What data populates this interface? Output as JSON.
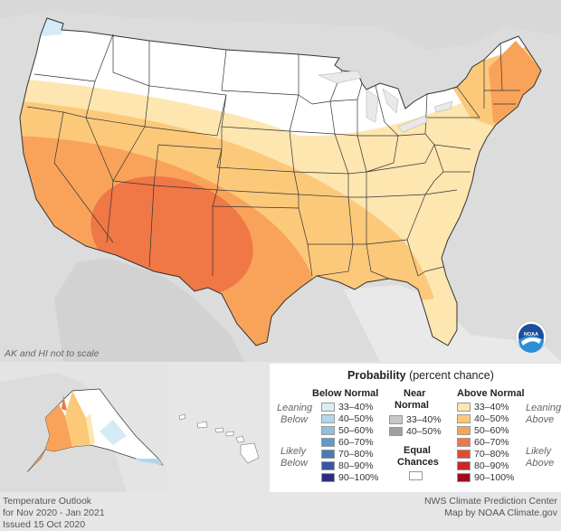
{
  "map": {
    "scale_note": "AK and HI not to scale",
    "logo_text": "NOAA",
    "colors": {
      "above_33_40": "#fde6b0",
      "above_40_50": "#fcc97a",
      "above_50_60": "#f9a35a",
      "above_60_70": "#f07746",
      "below_33_40": "#d4eaf5",
      "below_40_50": "#b2d6ea",
      "equal": "#ffffff"
    }
  },
  "legend": {
    "title_bold": "Probability",
    "title_rest": " (percent chance)",
    "below_normal_header": "Below Normal",
    "near_normal_header_1": "Near",
    "near_normal_header_2": "Normal",
    "above_normal_header": "Above Normal",
    "leaning_below_1": "Leaning",
    "leaning_below_2": "Below",
    "likely_below_1": "Likely",
    "likely_below_2": "Below",
    "leaning_above_1": "Leaning",
    "leaning_above_2": "Above",
    "likely_above_1": "Likely",
    "likely_above_2": "Above",
    "equal_1": "Equal",
    "equal_2": "Chances",
    "below": [
      {
        "label": "33–40%",
        "color": "#dcedf7"
      },
      {
        "label": "40–50%",
        "color": "#b3d6ea"
      },
      {
        "label": "50–60%",
        "color": "#8ebfdf"
      },
      {
        "label": "60–70%",
        "color": "#5f9bcb"
      },
      {
        "label": "70–80%",
        "color": "#4a78b8"
      },
      {
        "label": "80–90%",
        "color": "#3954a4"
      },
      {
        "label": "90–100%",
        "color": "#2b2c86"
      }
    ],
    "near": [
      {
        "label": "33–40%",
        "color": "#c8c8c8"
      },
      {
        "label": "40–50%",
        "color": "#a0a0a0"
      }
    ],
    "above": [
      {
        "label": "33–40%",
        "color": "#fde6b0"
      },
      {
        "label": "40–50%",
        "color": "#fcc97a"
      },
      {
        "label": "50–60%",
        "color": "#f9a35a"
      },
      {
        "label": "60–70%",
        "color": "#f07746"
      },
      {
        "label": "70–80%",
        "color": "#e34a33"
      },
      {
        "label": "80–90%",
        "color": "#c9262b"
      },
      {
        "label": "90–100%",
        "color": "#9e0b1b"
      }
    ]
  },
  "footer": {
    "title_line1": "Temperature Outlook",
    "title_line2": "for Nov 2020 - Jan 2021",
    "title_line3": "Issued 15 Oct 2020",
    "credit_line1": "NWS Climate Prediction Center",
    "credit_line2": "Map by NOAA Climate.gov"
  }
}
